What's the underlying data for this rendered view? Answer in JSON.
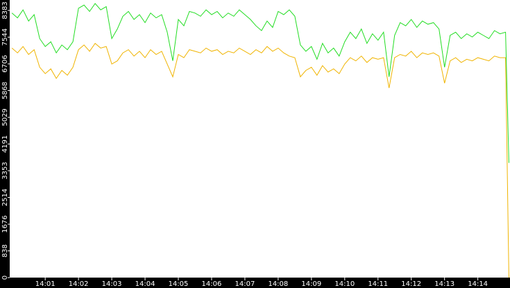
{
  "chart_data": {
    "type": "line",
    "x": [
      0,
      10,
      20,
      30,
      40,
      50,
      60,
      70,
      80,
      90,
      100,
      110,
      120,
      130,
      140,
      150,
      160,
      170,
      180,
      190,
      200,
      210,
      220,
      230,
      240,
      250,
      260,
      270,
      280,
      290,
      300,
      310,
      320,
      330,
      340,
      350,
      360,
      370,
      380,
      390,
      400,
      410,
      420,
      430,
      440,
      450,
      460,
      470,
      480,
      490,
      500,
      510,
      520,
      530,
      540,
      550,
      560,
      570,
      580,
      590,
      600,
      610,
      620,
      630,
      640,
      650,
      660,
      670,
      680,
      690,
      700,
      710,
      720,
      730,
      740,
      750,
      760,
      770,
      780,
      790,
      800,
      810,
      820,
      830,
      840,
      850,
      860,
      870,
      880,
      890,
      896
    ],
    "series": [
      {
        "name": "green",
        "color": "#22dd22",
        "values": [
          8300,
          8150,
          8400,
          8050,
          8250,
          7500,
          7250,
          7400,
          7050,
          7300,
          7150,
          7400,
          8450,
          8550,
          8350,
          8600,
          8400,
          8500,
          7500,
          7800,
          8200,
          8350,
          8100,
          8250,
          8000,
          8300,
          8150,
          8250,
          7700,
          6800,
          8100,
          7900,
          8350,
          8300,
          8200,
          8400,
          8250,
          8350,
          8150,
          8300,
          8200,
          8400,
          8250,
          8100,
          7900,
          7750,
          8050,
          7850,
          8350,
          8250,
          8400,
          8200,
          7300,
          7100,
          7250,
          6850,
          7350,
          7050,
          7200,
          6950,
          7400,
          7700,
          7500,
          7800,
          7350,
          7650,
          7450,
          7700,
          6300,
          7600,
          8000,
          7900,
          8100,
          7850,
          8050,
          7950,
          8000,
          7800,
          6600,
          7600,
          7700,
          7500,
          7650,
          7550,
          7700,
          7600,
          7500,
          7750,
          7650,
          7700,
          3600
        ]
      },
      {
        "name": "yellow",
        "color": "#f0b400",
        "values": [
          7200,
          7050,
          7250,
          7000,
          7150,
          6600,
          6400,
          6550,
          6250,
          6500,
          6350,
          6600,
          7150,
          7300,
          7100,
          7350,
          7200,
          7250,
          6700,
          6800,
          7050,
          7150,
          6950,
          7100,
          6900,
          7150,
          7000,
          7100,
          6700,
          6300,
          7000,
          6900,
          7150,
          7100,
          7050,
          7200,
          7100,
          7150,
          7000,
          7100,
          7050,
          7200,
          7100,
          7000,
          7150,
          7050,
          7250,
          7100,
          7200,
          7050,
          6950,
          6900,
          6300,
          6500,
          6600,
          6350,
          6650,
          6450,
          6550,
          6400,
          6700,
          6900,
          6800,
          6950,
          6750,
          6900,
          6850,
          6900,
          5950,
          6900,
          7000,
          6950,
          7100,
          6900,
          7050,
          7000,
          7050,
          6950,
          6100,
          6800,
          6900,
          6750,
          6850,
          6800,
          6900,
          6850,
          6800,
          6950,
          6900,
          6900,
          0
        ]
      }
    ],
    "xlim": [
      -4,
      898
    ],
    "xticks": [
      {
        "value": 60,
        "label": "14:01"
      },
      {
        "value": 120,
        "label": "14:02"
      },
      {
        "value": 180,
        "label": "14:03"
      },
      {
        "value": 240,
        "label": "14:04"
      },
      {
        "value": 300,
        "label": "14:05"
      },
      {
        "value": 360,
        "label": "14:06"
      },
      {
        "value": 420,
        "label": "14:07"
      },
      {
        "value": 480,
        "label": "14:08"
      },
      {
        "value": 540,
        "label": "14:09"
      },
      {
        "value": 600,
        "label": "14:10"
      },
      {
        "value": 660,
        "label": "14:11"
      },
      {
        "value": 720,
        "label": "14:12"
      },
      {
        "value": 780,
        "label": "14:13"
      },
      {
        "value": 840,
        "label": "14:14"
      }
    ],
    "ylim": [
      0,
      8710
    ],
    "yticks": [
      0,
      838,
      1676,
      2514,
      3353,
      4191,
      5029,
      5868,
      6706,
      7544,
      8383
    ]
  }
}
